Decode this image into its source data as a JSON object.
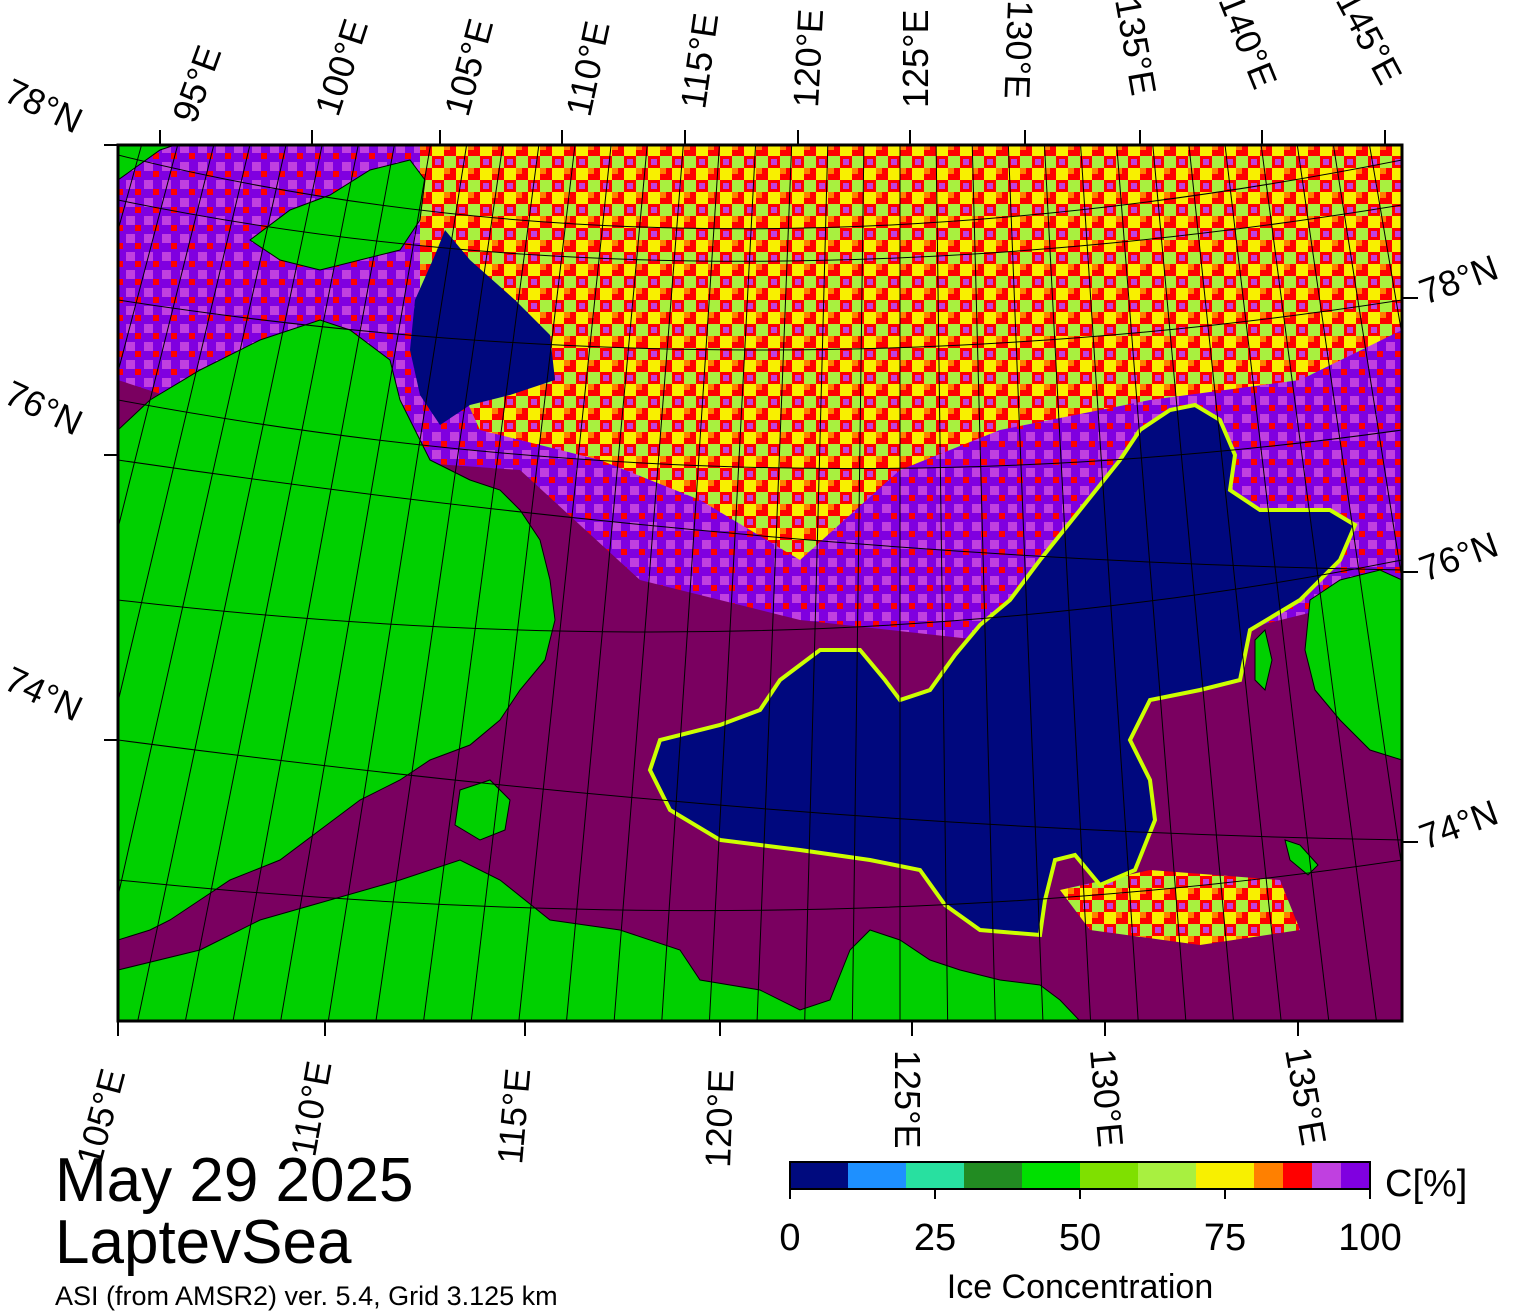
{
  "date": "May 29 2025",
  "region": "LaptevSea",
  "product": "ASI (from AMSR2) ver. 5.4,  Grid 3.125 km",
  "top_lon_labels": [
    "95°E",
    "100°E",
    "105°E",
    "110°E",
    "115°E",
    "120°E",
    "125°E",
    "130°E",
    "135°E",
    "140°E",
    "145°E"
  ],
  "bottom_lon_labels": [
    "105°E",
    "110°E",
    "115°E",
    "120°E",
    "125°E",
    "130°E",
    "135°E"
  ],
  "left_lat_labels": [
    "78°N",
    "76°N",
    "74°N"
  ],
  "right_lat_labels": [
    "78°N",
    "76°N",
    "74°N"
  ],
  "colorbar": {
    "unit": "C[%]",
    "title": "Ice Concentration",
    "tick_labels": [
      "0",
      "25",
      "50",
      "75",
      "100"
    ],
    "colors": [
      "#000a7e",
      "#1e90ff",
      "#28e0a0",
      "#228b22",
      "#00e000",
      "#7fe000",
      "#a8f040",
      "#f8f000",
      "#ff8000",
      "#ff0000",
      "#c040e0",
      "#8000e0"
    ]
  },
  "palette": {
    "land": "#00d000",
    "open_water": "#00087e",
    "full_ice": "#7a0060",
    "land_mask": "#808080"
  }
}
